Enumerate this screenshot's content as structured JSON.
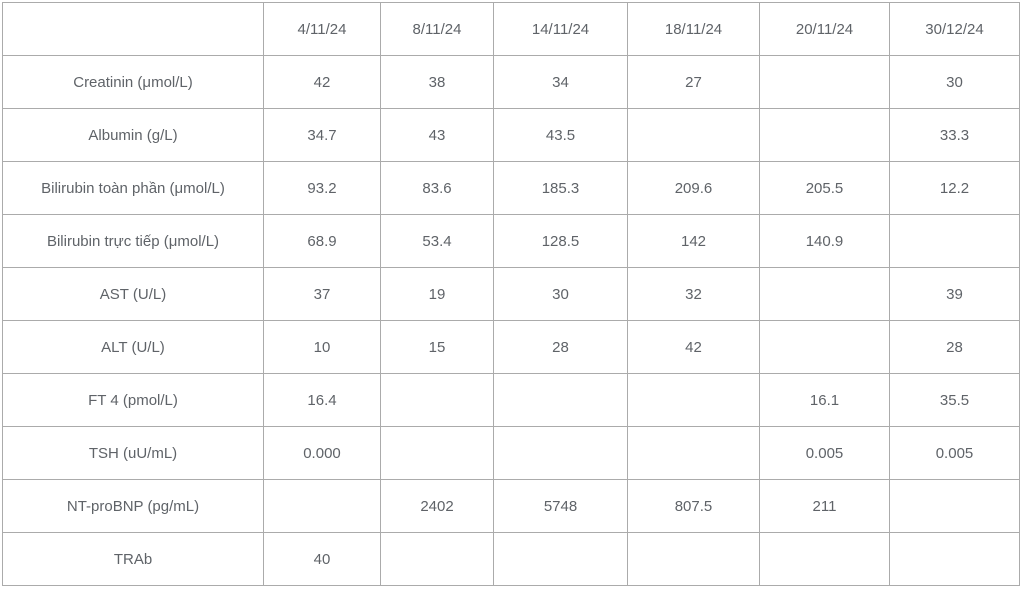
{
  "chart_data": {
    "type": "table",
    "title": "",
    "columns": [
      "",
      "4/11/24",
      "8/11/24",
      "14/11/24",
      "18/11/24",
      "20/11/24",
      "30/12/24"
    ],
    "rows": [
      {
        "label": "Creatinin (μmol/L)",
        "values": [
          "42",
          "38",
          "34",
          "27",
          "",
          "30"
        ]
      },
      {
        "label": "Albumin (g/L)",
        "values": [
          "34.7",
          "43",
          "43.5",
          "",
          "",
          "33.3"
        ]
      },
      {
        "label": "Bilirubin toàn phần (μmol/L)",
        "values": [
          "93.2",
          "83.6",
          "185.3",
          "209.6",
          "205.5",
          "12.2"
        ]
      },
      {
        "label": "Bilirubin trực tiếp (μmol/L)",
        "values": [
          "68.9",
          "53.4",
          "128.5",
          "142",
          "140.9",
          ""
        ]
      },
      {
        "label": "AST (U/L)",
        "values": [
          "37",
          "19",
          "30",
          "32",
          "",
          "39"
        ]
      },
      {
        "label": "ALT (U/L)",
        "values": [
          "10",
          "15",
          "28",
          "42",
          "",
          "28"
        ]
      },
      {
        "label": "FT 4 (pmol/L)",
        "values": [
          "16.4",
          "",
          "",
          "",
          "16.1",
          "35.5"
        ]
      },
      {
        "label": "TSH (uU/mL)",
        "values": [
          "0.000",
          "",
          "",
          "",
          "0.005",
          "0.005"
        ]
      },
      {
        "label": "NT-proBNP (pg/mL)",
        "values": [
          "",
          "2402",
          "5748",
          "807.5",
          "211",
          ""
        ]
      },
      {
        "label": "TRAb",
        "values": [
          "40",
          "",
          "",
          "",
          "",
          ""
        ]
      }
    ],
    "layout": {
      "grid": true,
      "header_position": "top",
      "label_column_position": "left"
    },
    "colors": {
      "text": "#5f6368",
      "border": "#ababab",
      "background": "#ffffff"
    }
  }
}
